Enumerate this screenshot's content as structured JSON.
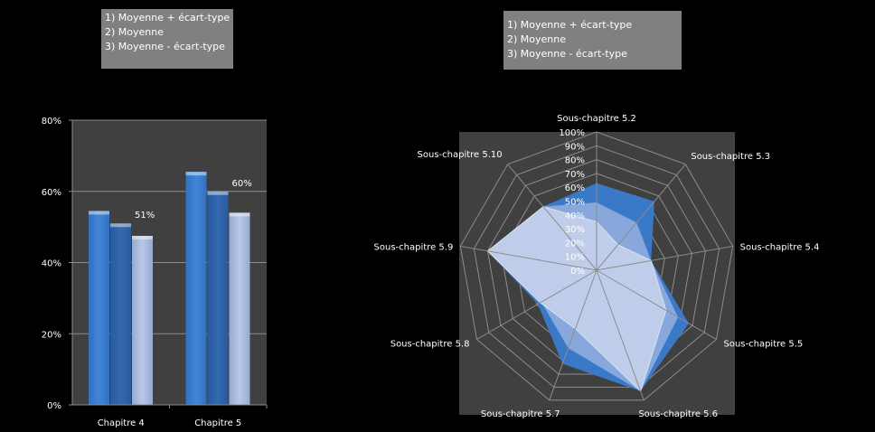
{
  "legend_left": [
    "1) Moyenne + écart-type",
    "2) Moyenne",
    "3) Moyenne - écart-type"
  ],
  "legend_right": [
    "1) Moyenne + écart-type",
    "2) Moyenne",
    "3) Moyenne - écart-type"
  ],
  "colors": {
    "series1": "#3a78c8",
    "series2": "#2f62a8",
    "series3": "#b4c4e4",
    "plot_bg": "#404040",
    "grid": "#8c8c8c"
  },
  "chart_data": [
    {
      "type": "bar",
      "categories": [
        "Chapitre 4",
        "Chapitre 5"
      ],
      "series": [
        {
          "name": "Moyenne + écart-type",
          "values": [
            54.5,
            65.5
          ]
        },
        {
          "name": "Moyenne",
          "values": [
            51,
            60
          ],
          "data_labels": [
            "51%",
            "60%"
          ]
        },
        {
          "name": "Moyenne - écart-type",
          "values": [
            47.5,
            54
          ]
        }
      ],
      "ylim": [
        0,
        80
      ],
      "yticks": [
        "0%",
        "20%",
        "40%",
        "60%",
        "80%"
      ],
      "grid": true
    },
    {
      "type": "radar",
      "categories": [
        "Sous-chapitre 5.2",
        "Sous-chapitre 5.3",
        "Sous-chapitre 5.4",
        "Sous-chapitre 5.5",
        "Sous-chapitre 5.6",
        "Sous-chapitre 5.7",
        "Sous-chapitre 5.8",
        "Sous-chapitre 5.9",
        "Sous-chapitre 5.10"
      ],
      "series": [
        {
          "name": "Moyenne + écart-type",
          "values": [
            63,
            65,
            40,
            77,
            93,
            72,
            49,
            80,
            60
          ]
        },
        {
          "name": "Moyenne",
          "values": [
            49,
            45,
            40,
            68,
            93,
            60,
            46,
            80,
            60
          ]
        },
        {
          "name": "Moyenne - écart-type",
          "values": [
            35,
            24,
            40,
            58,
            93,
            45,
            47,
            80,
            60
          ]
        }
      ],
      "rlim": [
        0,
        100
      ],
      "rticks": [
        "0%",
        "10%",
        "20%",
        "30%",
        "40%",
        "50%",
        "60%",
        "70%",
        "80%",
        "90%",
        "100%"
      ]
    }
  ]
}
